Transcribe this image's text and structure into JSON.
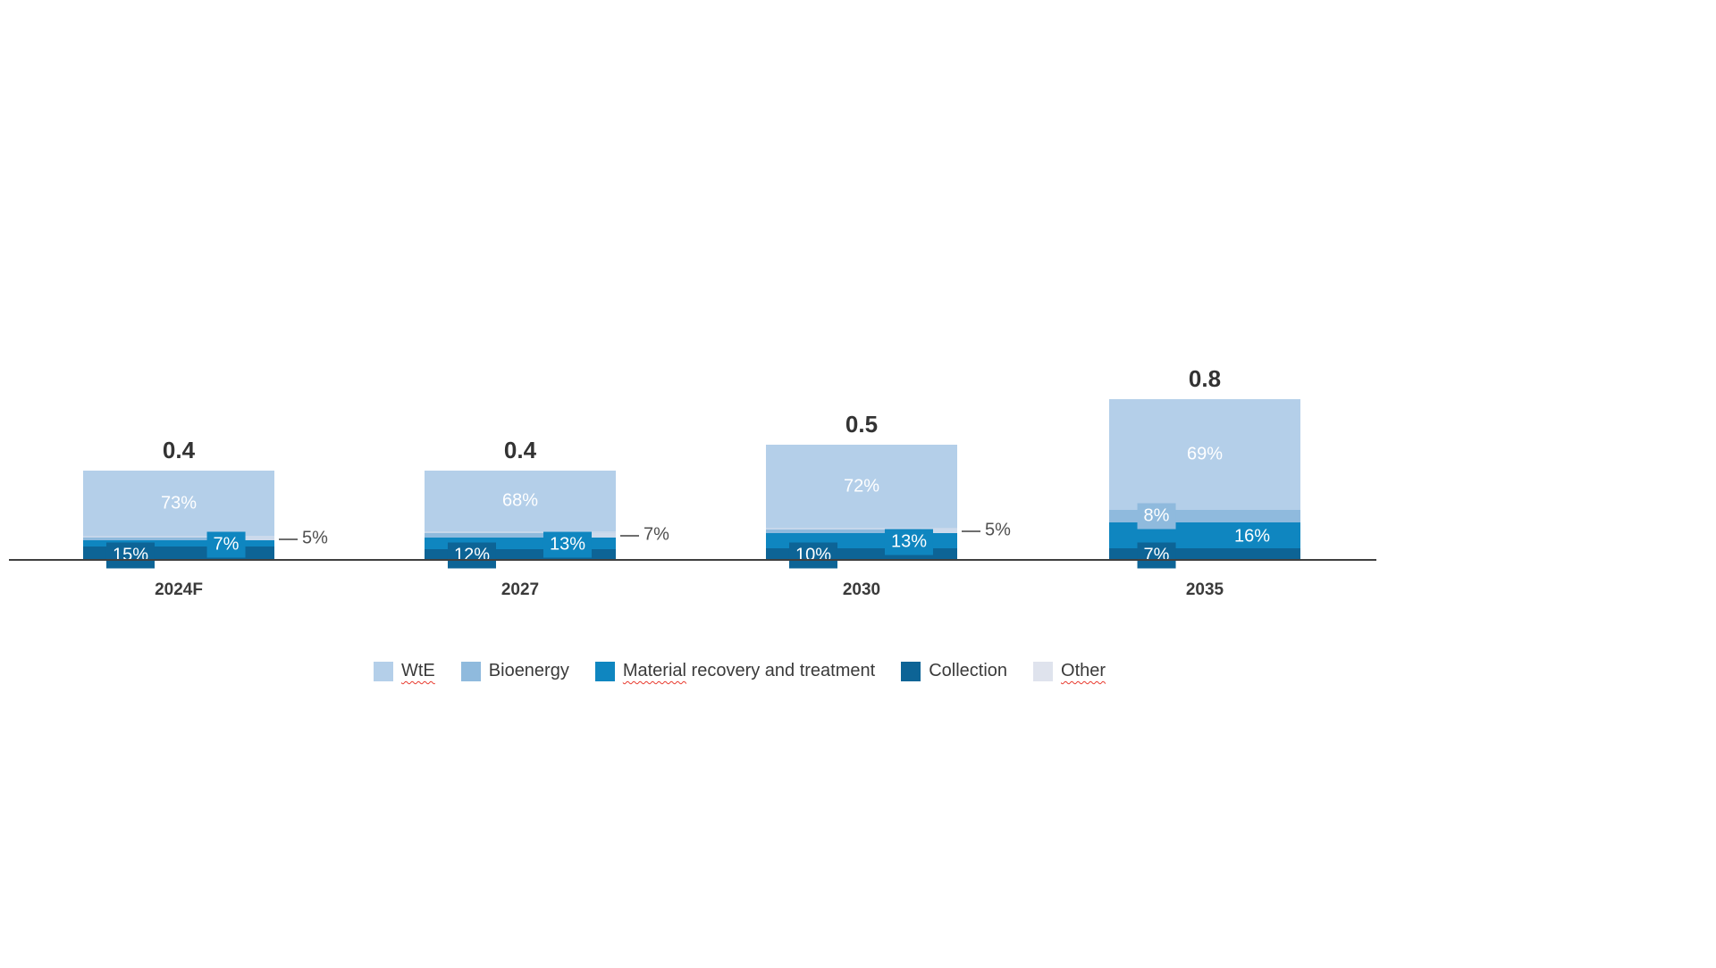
{
  "page": {
    "background": "#ffffff"
  },
  "chart_data": {
    "type": "bar",
    "stacked": true,
    "title": "",
    "categories": [
      "2024F",
      "2027",
      "2030",
      "2035"
    ],
    "totals": [
      0.4,
      0.4,
      0.5,
      0.8
    ],
    "total_labels": [
      "0.4",
      "0.4",
      "0.5",
      "0.8"
    ],
    "series": [
      {
        "name": "WtE",
        "color": "#b4cfe9",
        "values": [
          73,
          68,
          72,
          69
        ],
        "labels": [
          "73%",
          "68%",
          "72%",
          "69%"
        ],
        "label_modes": [
          "center",
          "center",
          "center",
          "center"
        ]
      },
      {
        "name": "Bioenergy",
        "color": "#8fbadd",
        "values": [
          5,
          7,
          5,
          8
        ],
        "labels": [
          "5%",
          "7%",
          "5%",
          "8%"
        ],
        "label_modes": [
          "external",
          "external",
          "external",
          "chip"
        ]
      },
      {
        "name": "Material recovery and treatment",
        "color": "#0f86c0",
        "values": [
          7,
          13,
          13,
          16
        ],
        "labels": [
          "7%",
          "13%",
          "13%",
          "16%"
        ],
        "label_modes": [
          "chip",
          "chip",
          "chip",
          "plain"
        ]
      },
      {
        "name": "Collection",
        "color": "#0d6496",
        "values": [
          15,
          12,
          10,
          7
        ],
        "labels": [
          "15%",
          "12%",
          "10%",
          "7%"
        ],
        "label_modes": [
          "chip-below",
          "chip-below",
          "chip-below",
          "chip-below"
        ]
      },
      {
        "name": "Other",
        "color": "#dfe3ed",
        "values": [
          0,
          0,
          0,
          0
        ],
        "labels": [
          "",
          "",
          "",
          ""
        ],
        "label_modes": [
          "none",
          "none",
          "none",
          "none"
        ]
      }
    ],
    "legend_position": "bottom",
    "grid": false,
    "baseline_visible": true,
    "ylim": [
      0,
      0.8
    ],
    "xlabel": "",
    "ylabel": ""
  },
  "legend": {
    "items": [
      {
        "label": "WtE",
        "squiggle": "WtE",
        "rest": "",
        "color": "#b4cfe9"
      },
      {
        "label": "Bioenergy",
        "squiggle": "",
        "rest": "Bioenergy",
        "color": "#8fbadd"
      },
      {
        "label": "Material recovery and treatment",
        "squiggle": "Material",
        "rest": " recovery and treatment",
        "color": "#0f86c0"
      },
      {
        "label": "Collection",
        "squiggle": "",
        "rest": "Collection",
        "color": "#0d6496"
      },
      {
        "label": "Other",
        "squiggle": "Other",
        "rest": "",
        "color": "#dfe3ed"
      }
    ]
  },
  "colors": {
    "wte": "#b4cfe9",
    "bioenergy": "#8fbadd",
    "material_recovery": "#0f86c0",
    "collection": "#0d6496",
    "other": "#dfe3ed",
    "other_strip": "#c6d7eb",
    "connector_patch": "#ccdaec",
    "axis": "#3f3f3f",
    "total_text": "#333333",
    "external_label_text": "#4f4f4f",
    "squiggle": "#e8392e"
  }
}
